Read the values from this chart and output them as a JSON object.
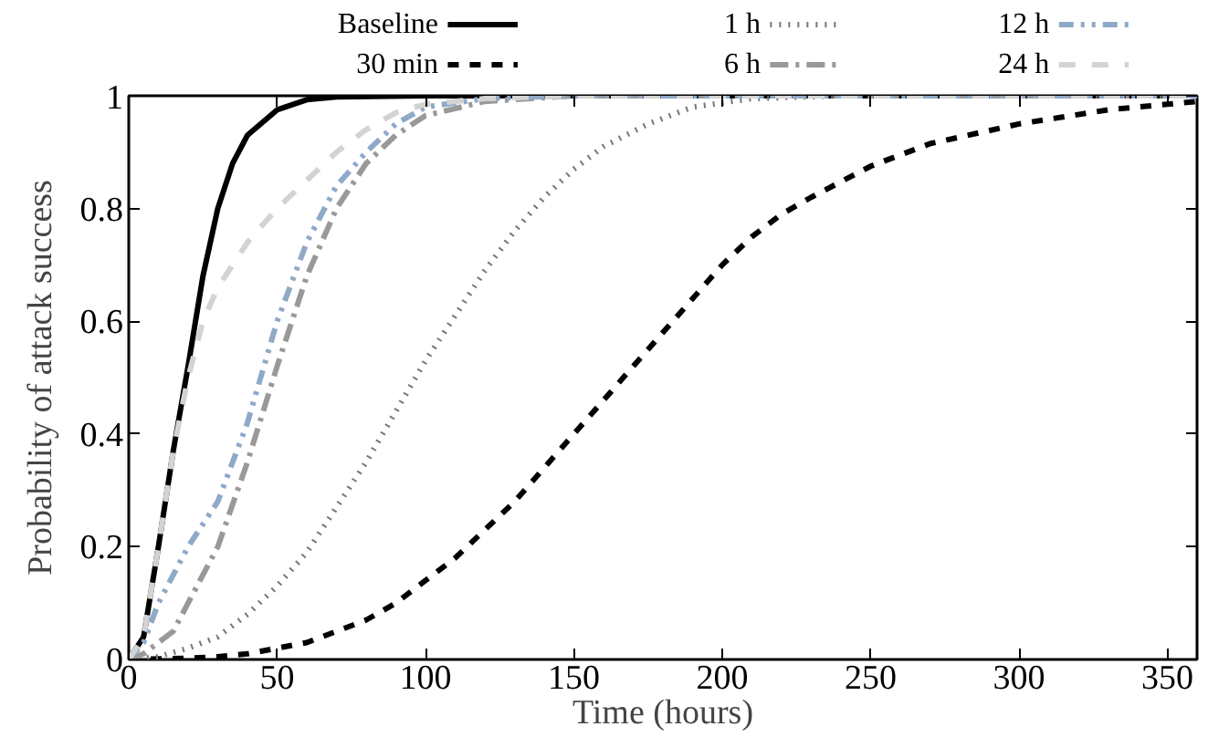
{
  "chart_data": {
    "type": "line",
    "xlabel": "Time (hours)",
    "ylabel": "Probability of attack success",
    "xlim": [
      0,
      360
    ],
    "xticks": [
      0,
      50,
      100,
      150,
      200,
      250,
      300,
      350
    ],
    "ylim": [
      0,
      1
    ],
    "yticks": [
      0,
      0.2,
      0.4,
      0.6,
      0.8,
      1
    ],
    "grid": false,
    "legend": "top",
    "marker": "none",
    "series": [
      {
        "name": "Baseline",
        "color": "#000000",
        "line_style": "solid",
        "x": [
          0,
          5,
          10,
          15,
          20,
          25,
          30,
          35,
          40,
          50,
          60,
          70,
          100,
          360
        ],
        "values": [
          0,
          0.04,
          0.2,
          0.37,
          0.52,
          0.68,
          0.8,
          0.88,
          0.93,
          0.975,
          0.993,
          0.998,
          1,
          1
        ]
      },
      {
        "name": "30 min",
        "color": "#000000",
        "line_style": "dashed",
        "x": [
          0,
          20,
          30,
          40,
          50,
          60,
          70,
          80,
          90,
          100,
          110,
          120,
          130,
          140,
          150,
          160,
          170,
          180,
          190,
          200,
          210,
          220,
          230,
          250,
          270,
          300,
          330,
          350,
          360
        ],
        "values": [
          0,
          0.002,
          0.005,
          0.01,
          0.02,
          0.03,
          0.05,
          0.07,
          0.1,
          0.14,
          0.18,
          0.23,
          0.28,
          0.34,
          0.4,
          0.46,
          0.52,
          0.58,
          0.64,
          0.7,
          0.75,
          0.79,
          0.82,
          0.875,
          0.915,
          0.95,
          0.975,
          0.985,
          0.99
        ]
      },
      {
        "name": "1 h",
        "color": "#777777",
        "line_style": "dotted",
        "x": [
          0,
          10,
          20,
          30,
          40,
          50,
          60,
          70,
          80,
          90,
          100,
          110,
          120,
          130,
          140,
          150,
          160,
          175,
          190,
          210,
          240,
          360
        ],
        "values": [
          0,
          0.005,
          0.02,
          0.04,
          0.08,
          0.13,
          0.19,
          0.27,
          0.35,
          0.44,
          0.53,
          0.61,
          0.69,
          0.76,
          0.82,
          0.87,
          0.91,
          0.95,
          0.98,
          0.995,
          1,
          1
        ]
      },
      {
        "name": "6 h",
        "color": "#999999",
        "line_style": "dashdot",
        "x": [
          0,
          5,
          10,
          15,
          20,
          30,
          40,
          50,
          60,
          70,
          80,
          90,
          100,
          120,
          150,
          360
        ],
        "values": [
          0,
          0.01,
          0.03,
          0.05,
          0.1,
          0.2,
          0.35,
          0.52,
          0.68,
          0.8,
          0.88,
          0.93,
          0.965,
          0.99,
          1,
          1
        ]
      },
      {
        "name": "12 h",
        "color": "#8fa9c8",
        "line_style": "dashdotdot",
        "x": [
          0,
          5,
          10,
          20,
          30,
          40,
          50,
          60,
          70,
          80,
          90,
          100,
          120,
          150,
          360
        ],
        "values": [
          0,
          0.03,
          0.1,
          0.2,
          0.28,
          0.42,
          0.6,
          0.74,
          0.84,
          0.9,
          0.95,
          0.98,
          0.995,
          1,
          1
        ]
      },
      {
        "name": "24 h",
        "color": "#d3d3d3",
        "line_style": "dashed",
        "x": [
          0,
          5,
          10,
          15,
          20,
          25,
          30,
          40,
          50,
          60,
          70,
          80,
          90,
          100,
          120,
          150,
          360
        ],
        "values": [
          0,
          0.04,
          0.2,
          0.37,
          0.5,
          0.6,
          0.66,
          0.74,
          0.8,
          0.85,
          0.9,
          0.94,
          0.97,
          0.985,
          0.995,
          1,
          1
        ]
      }
    ]
  }
}
